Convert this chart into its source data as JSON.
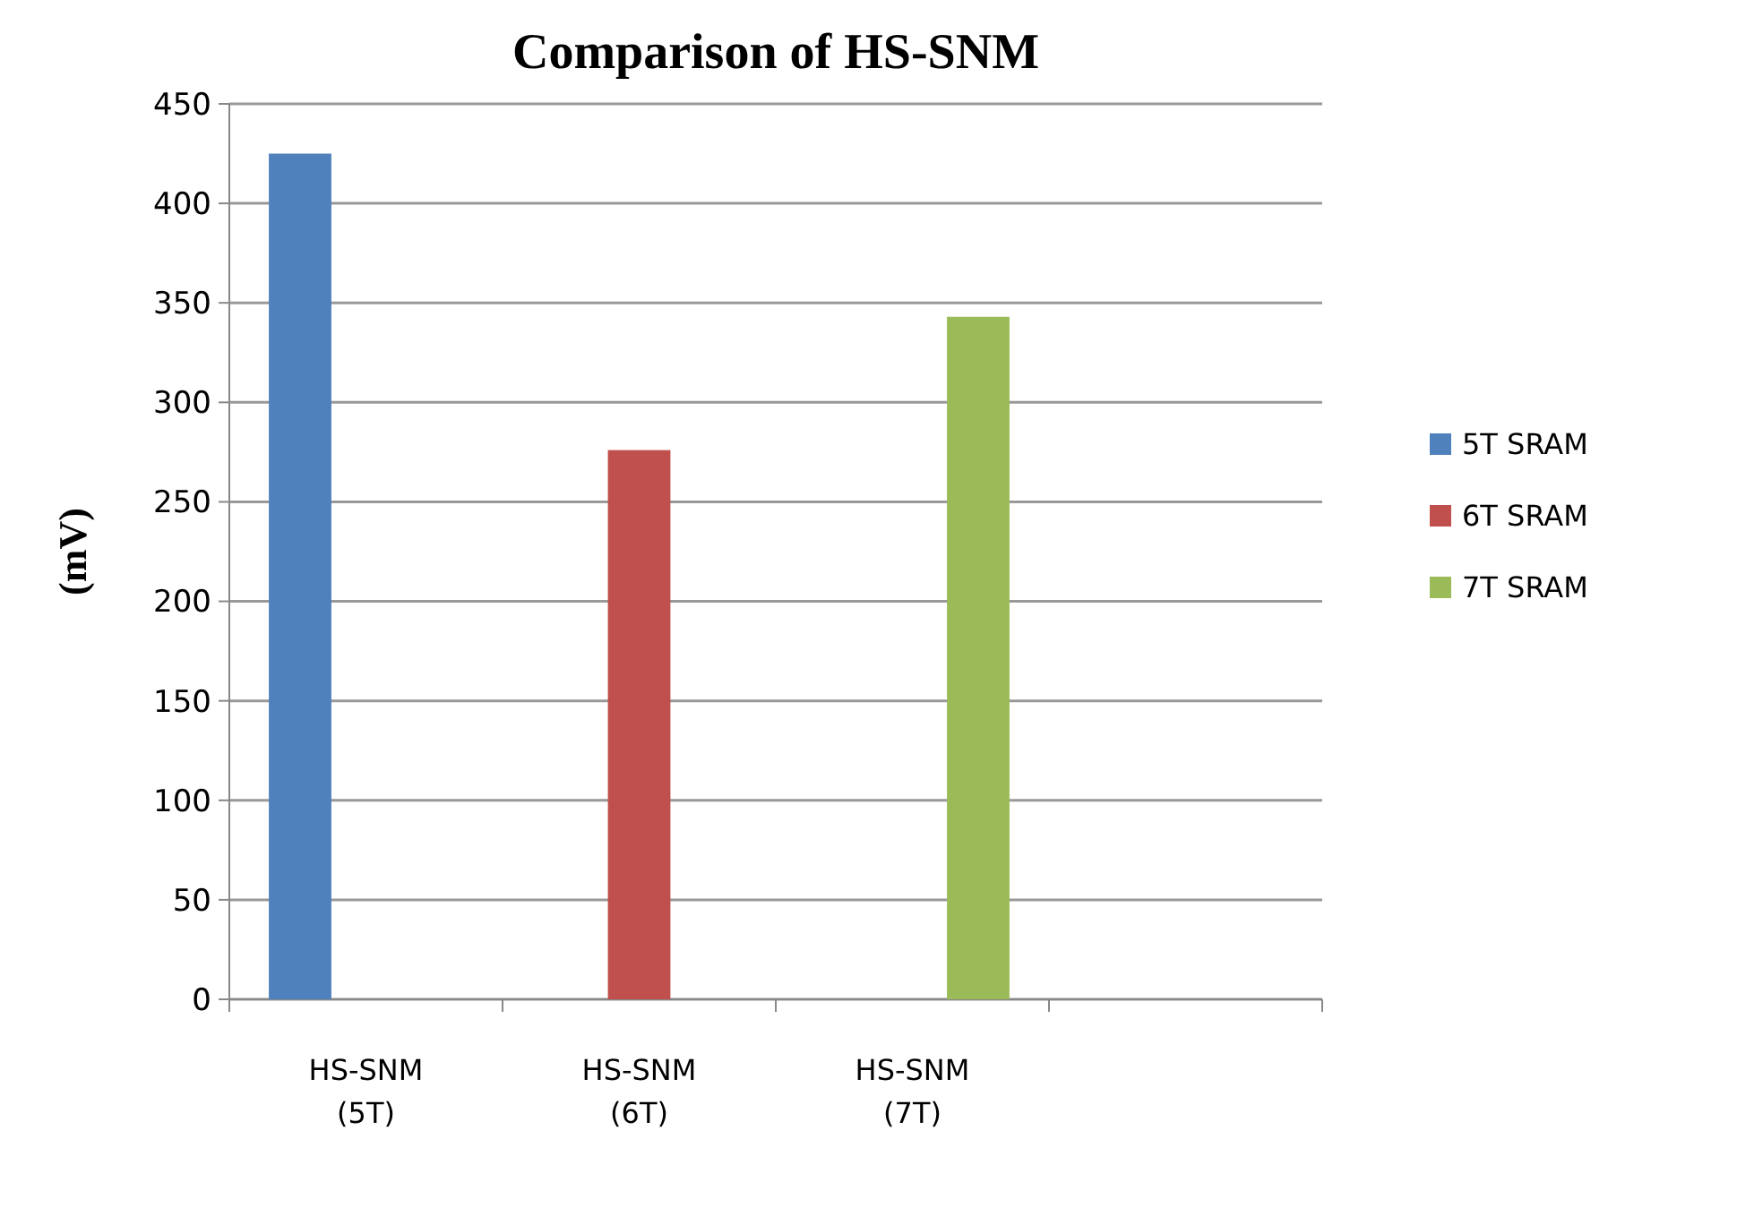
{
  "chart_data": {
    "type": "bar",
    "title": "Comparison of HS-SNM",
    "ylabel": "(mV)",
    "categories": [
      "HS-SNM\n(5T)",
      "HS-SNM\n(6T)",
      "HS-SNM\n(7T)",
      null
    ],
    "series": [
      {
        "name": "5T SRAM",
        "color": "#4f81bd",
        "values": [
          425,
          null,
          null,
          null
        ]
      },
      {
        "name": "6T SRAM",
        "color": "#c0504d",
        "values": [
          null,
          276,
          null,
          null
        ]
      },
      {
        "name": "7T SRAM",
        "color": "#9bbb59",
        "values": [
          null,
          null,
          343,
          null
        ]
      }
    ],
    "ylim": [
      0,
      450
    ],
    "yticks": [
      0,
      50,
      100,
      150,
      200,
      250,
      300,
      350,
      400,
      450
    ],
    "grid": "y",
    "legend": "right"
  }
}
